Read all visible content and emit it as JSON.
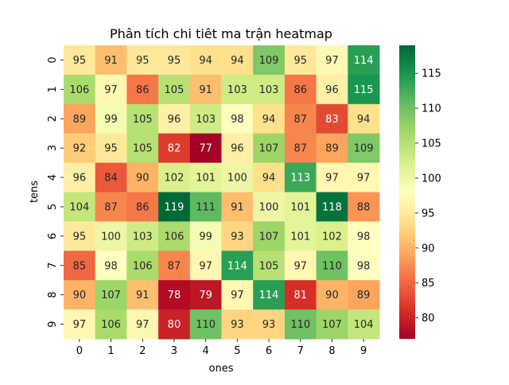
{
  "chart_data": {
    "type": "heatmap",
    "title": "Phân tích chi tiêt ma trận heatmap",
    "xlabel": "ones",
    "ylabel": "tens",
    "x_categories": [
      "0",
      "1",
      "2",
      "3",
      "4",
      "5",
      "6",
      "7",
      "8",
      "9"
    ],
    "y_categories": [
      "0",
      "1",
      "2",
      "3",
      "4",
      "5",
      "6",
      "7",
      "8",
      "9"
    ],
    "values": [
      [
        95,
        91,
        95,
        95,
        94,
        94,
        109,
        95,
        97,
        114
      ],
      [
        106,
        97,
        86,
        105,
        91,
        103,
        103,
        86,
        96,
        115
      ],
      [
        89,
        99,
        105,
        96,
        103,
        98,
        94,
        87,
        83,
        94
      ],
      [
        92,
        95,
        105,
        82,
        77,
        96,
        107,
        87,
        89,
        109
      ],
      [
        96,
        84,
        90,
        102,
        101,
        100,
        94,
        113,
        97,
        97
      ],
      [
        104,
        87,
        86,
        119,
        111,
        91,
        100,
        101,
        118,
        88
      ],
      [
        95,
        100,
        103,
        106,
        99,
        93,
        107,
        101,
        102,
        98
      ],
      [
        85,
        98,
        106,
        87,
        97,
        114,
        105,
        97,
        110,
        98
      ],
      [
        90,
        107,
        91,
        78,
        79,
        97,
        114,
        81,
        90,
        89
      ],
      [
        97,
        106,
        97,
        80,
        110,
        93,
        93,
        110,
        107,
        104
      ]
    ],
    "colormap": "RdYlGn",
    "vmin": 77,
    "vmax": 119,
    "annotated": true,
    "colorbar": {
      "ticks": [
        80,
        85,
        90,
        95,
        100,
        105,
        110,
        115
      ],
      "placement": "right"
    },
    "grid": false
  }
}
